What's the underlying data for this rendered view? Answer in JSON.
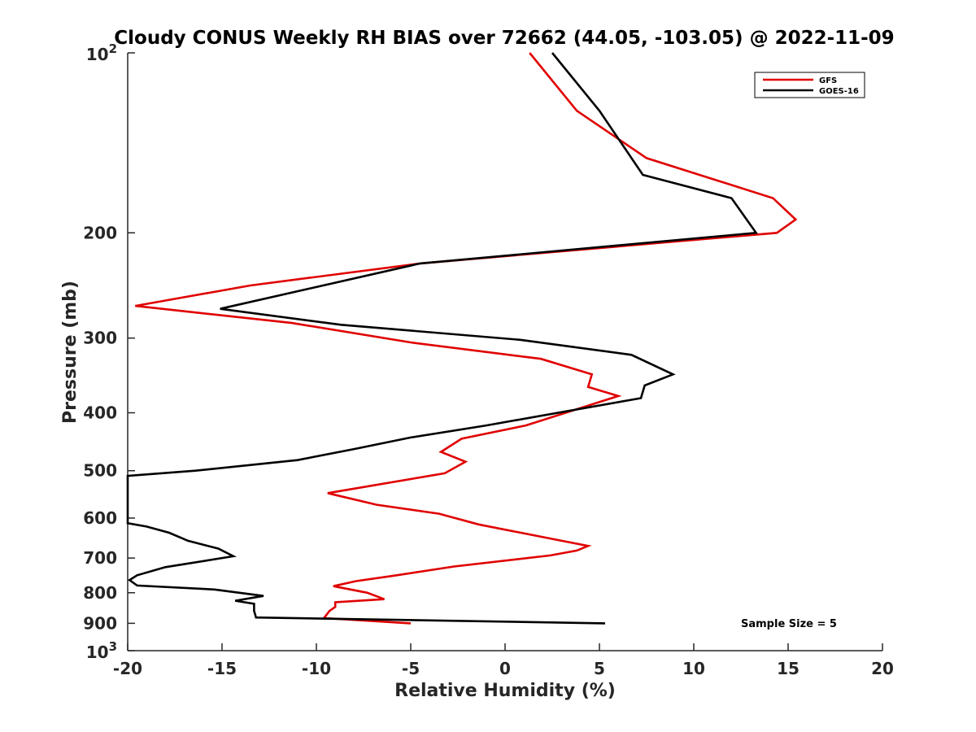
{
  "chart_data": {
    "type": "line",
    "title": "Cloudy CONUS Weekly RH BIAS over 72662 (44.05, -103.05) @ 2022-11-09",
    "xlabel": "Relative Humidity (%)",
    "ylabel": "Pressure (mb)",
    "xlim": [
      -20,
      20
    ],
    "ylim": [
      100,
      1000
    ],
    "y_scale": "log",
    "y_reversed": true,
    "x_ticks": [
      "-20",
      "-15",
      "-10",
      "-5",
      "0",
      "5",
      "10",
      "15",
      "20"
    ],
    "y_ticks": [
      {
        "value": 100,
        "base": "10",
        "exp": "2"
      },
      {
        "value": 200,
        "label": "200"
      },
      {
        "value": 300,
        "label": "300"
      },
      {
        "value": 400,
        "label": "400"
      },
      {
        "value": 500,
        "label": "500"
      },
      {
        "value": 600,
        "label": "600"
      },
      {
        "value": 700,
        "label": "700"
      },
      {
        "value": 800,
        "label": "800"
      },
      {
        "value": 900,
        "label": "900"
      },
      {
        "value": 1000,
        "base": "10",
        "exp": "3"
      }
    ],
    "grid": false,
    "legend_position": "top-right",
    "annotation": "Sample Size = 5",
    "series": [
      {
        "name": "GFS",
        "color": "#e00000",
        "points": [
          [
            1.3,
            100
          ],
          [
            3.8,
            125
          ],
          [
            7.5,
            150
          ],
          [
            14.2,
            175
          ],
          [
            15.4,
            190
          ],
          [
            14.4,
            200
          ],
          [
            -4.5,
            225
          ],
          [
            -13.5,
            245
          ],
          [
            -19.6,
            265
          ],
          [
            -11.3,
            283
          ],
          [
            -5.0,
            305
          ],
          [
            1.9,
            325
          ],
          [
            4.6,
            345
          ],
          [
            4.4,
            362
          ],
          [
            6.0,
            375
          ],
          [
            1.1,
            420
          ],
          [
            -2.3,
            442
          ],
          [
            -3.4,
            465
          ],
          [
            -2.1,
            483
          ],
          [
            -3.2,
            505
          ],
          [
            -9.4,
            545
          ],
          [
            -6.8,
            570
          ],
          [
            -3.5,
            590
          ],
          [
            -1.4,
            615
          ],
          [
            3.0,
            655
          ],
          [
            4.4,
            668
          ],
          [
            3.8,
            680
          ],
          [
            2.4,
            693
          ],
          [
            -2.7,
            723
          ],
          [
            -6.0,
            750
          ],
          [
            -7.9,
            765
          ],
          [
            -9.1,
            780
          ],
          [
            -7.3,
            800
          ],
          [
            -6.4,
            820
          ],
          [
            -9.0,
            830
          ],
          [
            -9.0,
            845
          ],
          [
            -9.3,
            858
          ],
          [
            -9.6,
            882
          ],
          [
            -5.0,
            900
          ]
        ]
      },
      {
        "name": "GOES-16",
        "color": "#000000",
        "points": [
          [
            2.5,
            100
          ],
          [
            5.0,
            125
          ],
          [
            7.3,
            160
          ],
          [
            12.0,
            175
          ],
          [
            13.3,
            200
          ],
          [
            -4.5,
            225
          ],
          [
            -15.1,
            268
          ],
          [
            -8.7,
            285
          ],
          [
            0.8,
            302
          ],
          [
            6.7,
            320
          ],
          [
            8.9,
            345
          ],
          [
            7.4,
            360
          ],
          [
            7.2,
            378
          ],
          [
            -1.0,
            420
          ],
          [
            -5.0,
            440
          ],
          [
            -8.0,
            460
          ],
          [
            -11.0,
            480
          ],
          [
            -16.4,
            500
          ],
          [
            -20.0,
            510
          ],
          [
            -20.0,
            612
          ],
          [
            -19.0,
            620
          ],
          [
            -17.8,
            635
          ],
          [
            -16.8,
            655
          ],
          [
            -15.2,
            675
          ],
          [
            -14.4,
            695
          ],
          [
            -18.0,
            725
          ],
          [
            -19.5,
            748
          ],
          [
            -19.9,
            762
          ],
          [
            -19.5,
            778
          ],
          [
            -15.4,
            790
          ],
          [
            -12.8,
            810
          ],
          [
            -14.3,
            825
          ],
          [
            -13.3,
            835
          ],
          [
            -13.3,
            858
          ],
          [
            -13.2,
            880
          ],
          [
            5.3,
            900
          ]
        ]
      }
    ]
  }
}
